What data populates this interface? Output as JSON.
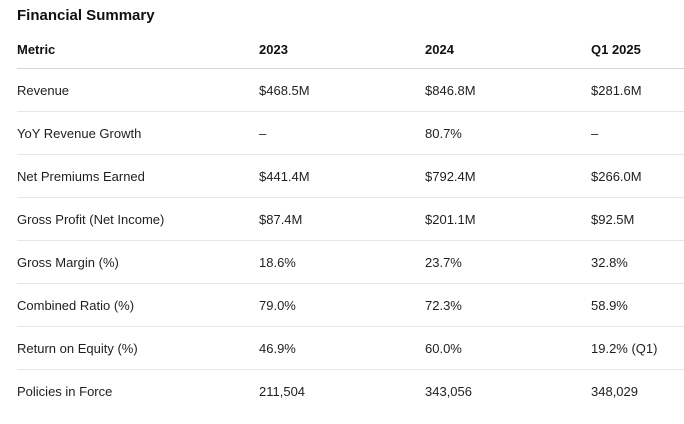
{
  "title": "Financial Summary",
  "table": {
    "headers": [
      "Metric",
      "2023",
      "2024",
      "Q1 2025"
    ],
    "rows": [
      [
        "Revenue",
        "$468.5M",
        "$846.8M",
        "$281.6M"
      ],
      [
        "YoY Revenue Growth",
        "–",
        "80.7%",
        "–"
      ],
      [
        "Net Premiums Earned",
        "$441.4M",
        "$792.4M",
        "$266.0M"
      ],
      [
        "Gross Profit (Net Income)",
        "$87.4M",
        "$201.1M",
        "$92.5M"
      ],
      [
        "Gross Margin (%)",
        "18.6%",
        "23.7%",
        "32.8%"
      ],
      [
        "Combined Ratio (%)",
        "79.0%",
        "72.3%",
        "58.9%"
      ],
      [
        "Return on Equity (%)",
        "46.9%",
        "60.0%",
        "19.2% (Q1)"
      ],
      [
        "Policies in Force",
        "211,504",
        "343,056",
        "348,029"
      ]
    ]
  }
}
